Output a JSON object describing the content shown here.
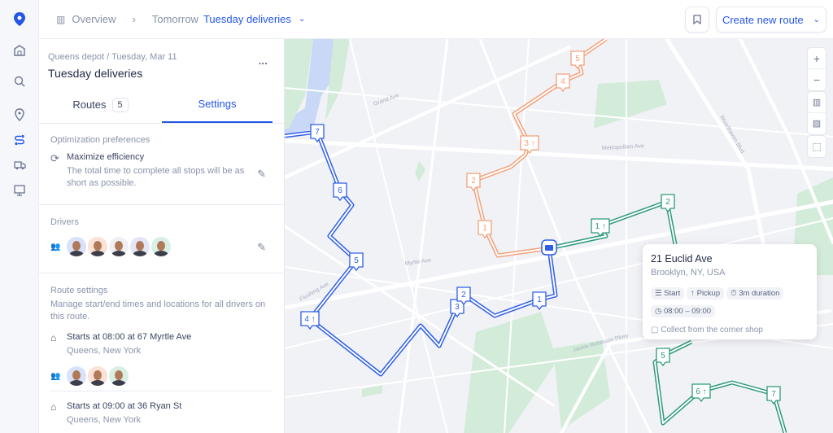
{
  "colors": {
    "accent": "#2457e6",
    "route_blue": "#2f5fe8",
    "route_orange": "#f4a07a",
    "route_green": "#2e9a7b",
    "park": "#d3ecd9",
    "water": "#c8d8f6"
  },
  "rail": {
    "items": [
      "pin-logo-icon",
      "warehouse-icon",
      "search-icon",
      "location-icon",
      "routes-icon",
      "truck-icon",
      "monitor-icon"
    ]
  },
  "topbar": {
    "overview": "Overview",
    "separator": "›",
    "tomorrow": "Tomorrow",
    "current": "Tuesday deliveries",
    "create": "Create new route"
  },
  "panel": {
    "breadcrumb": "Queens depot / Tuesday, Mar 11",
    "title": "Tuesday deliveries",
    "more": "···",
    "tabs": [
      {
        "label": "Routes",
        "count": "5"
      },
      {
        "label": "Settings",
        "active": true
      }
    ],
    "optimization": {
      "heading": "Optimization preferences",
      "title": "Maximize efficiency",
      "desc": "The total time to complete all stops will be as short as possible."
    },
    "drivers": {
      "heading": "Drivers"
    },
    "route_settings": {
      "heading": "Route settings",
      "desc": "Manage start/end times and locations for all drivers on this route.",
      "starts": [
        {
          "title": "Starts at 08:00 at 67 Myrtle Ave",
          "sub": "Queens, New York"
        },
        {
          "title": "Starts at 09:00 at 36 Ryan St",
          "sub": "Queens, New York"
        }
      ]
    }
  },
  "map": {
    "streets": [
      "Grand Ave",
      "Metropolitan Ave",
      "Myrtle Ave",
      "Flushing Ave",
      "Woodhaven Blvd",
      "Jackie Robinson Pkwy"
    ],
    "controls": {
      "zoom_in": "+",
      "zoom_out": "−"
    },
    "routes": {
      "blue": [
        "7",
        "6",
        "5",
        "4 ↑",
        "3",
        "2",
        "1"
      ],
      "orange": [
        "1",
        "2",
        "3 ↑",
        "4",
        "5"
      ],
      "green": [
        "1 ↑",
        "2",
        "5",
        "6 ↑",
        "7"
      ]
    },
    "popup": {
      "title": "21 Euclid Ave",
      "sub": "Brooklyn, NY, USA",
      "chips": [
        "Start",
        "↑ Pickup",
        "3m duration"
      ],
      "time": "08:00 – 09:00",
      "note": "Collect from the corner shop"
    }
  }
}
